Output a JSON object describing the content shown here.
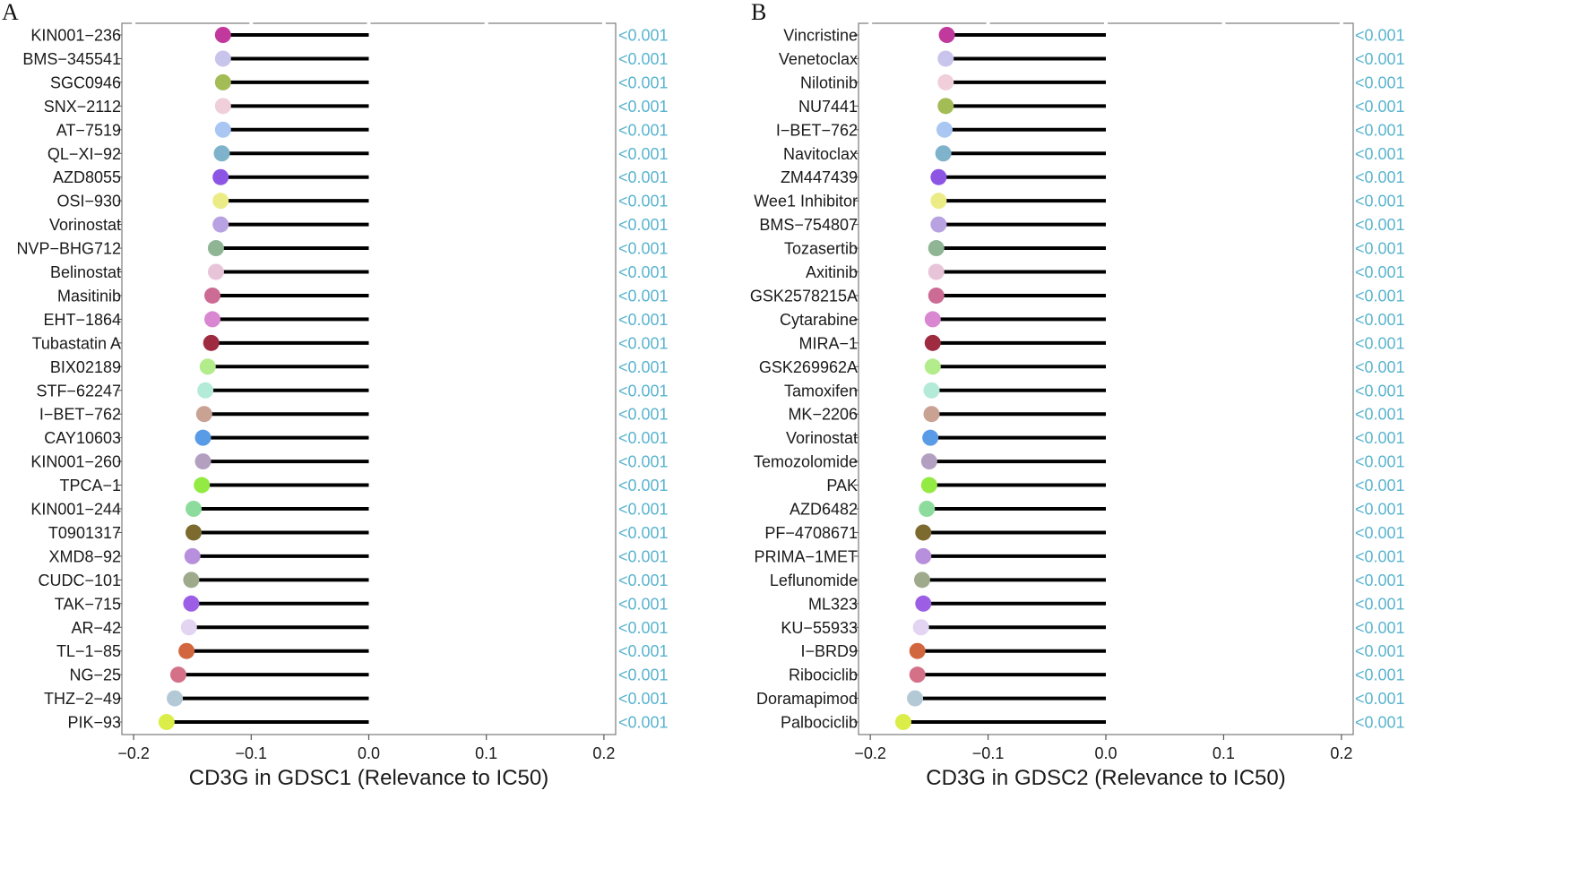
{
  "chart_data": [
    {
      "panel": "A",
      "type": "lollipop",
      "xlabel": "CD3G in GDSC1 (Relevance to IC50)",
      "xlim": [
        -0.21,
        0.21
      ],
      "xticks": [
        -0.2,
        -0.1,
        0.0,
        0.1,
        0.2
      ],
      "xtick_labels": [
        "−0.2",
        "−0.1",
        "0.0",
        "0.1",
        "0.2"
      ],
      "baseline": 0.0,
      "items": [
        {
          "drug": "KIN001−236",
          "value": -0.124,
          "pvalue": "<0.001",
          "color": "#c2399d"
        },
        {
          "drug": "BMS−345541",
          "value": -0.124,
          "pvalue": "<0.001",
          "color": "#c9c4ec"
        },
        {
          "drug": "SGC0946",
          "value": -0.124,
          "pvalue": "<0.001",
          "color": "#a3bc55"
        },
        {
          "drug": "SNX−2112",
          "value": -0.124,
          "pvalue": "<0.001",
          "color": "#f0cfdb"
        },
        {
          "drug": "AT−7519",
          "value": -0.124,
          "pvalue": "<0.001",
          "color": "#a9c7f2"
        },
        {
          "drug": "QL−XI−92",
          "value": -0.125,
          "pvalue": "<0.001",
          "color": "#7fb3cb"
        },
        {
          "drug": "AZD8055",
          "value": -0.126,
          "pvalue": "<0.001",
          "color": "#8d55e3"
        },
        {
          "drug": "OSI−930",
          "value": -0.126,
          "pvalue": "<0.001",
          "color": "#ecec87"
        },
        {
          "drug": "Vorinostat",
          "value": -0.126,
          "pvalue": "<0.001",
          "color": "#b8a2e1"
        },
        {
          "drug": "NVP−BHG712",
          "value": -0.13,
          "pvalue": "<0.001",
          "color": "#8fb595"
        },
        {
          "drug": "Belinostat",
          "value": -0.13,
          "pvalue": "<0.001",
          "color": "#e8c4d8"
        },
        {
          "drug": "Masitinib",
          "value": -0.133,
          "pvalue": "<0.001",
          "color": "#cc6b94"
        },
        {
          "drug": "EHT−1864",
          "value": -0.133,
          "pvalue": "<0.001",
          "color": "#d887d0"
        },
        {
          "drug": "Tubastatin A",
          "value": -0.134,
          "pvalue": "<0.001",
          "color": "#9e2b3f"
        },
        {
          "drug": "BIX02189",
          "value": -0.137,
          "pvalue": "<0.001",
          "color": "#b3ec8b"
        },
        {
          "drug": "STF−62247",
          "value": -0.139,
          "pvalue": "<0.001",
          "color": "#b3ebd8"
        },
        {
          "drug": "I−BET−762",
          "value": -0.14,
          "pvalue": "<0.001",
          "color": "#c9a294"
        },
        {
          "drug": "CAY10603",
          "value": -0.141,
          "pvalue": "<0.001",
          "color": "#5a9be8"
        },
        {
          "drug": "KIN001−260",
          "value": -0.141,
          "pvalue": "<0.001",
          "color": "#b3a0c1"
        },
        {
          "drug": "TPCA−1",
          "value": -0.142,
          "pvalue": "<0.001",
          "color": "#93ea42"
        },
        {
          "drug": "KIN001−244",
          "value": -0.149,
          "pvalue": "<0.001",
          "color": "#8ddc9d"
        },
        {
          "drug": "T0901317",
          "value": -0.149,
          "pvalue": "<0.001",
          "color": "#7d6a2f"
        },
        {
          "drug": "XMD8−92",
          "value": -0.15,
          "pvalue": "<0.001",
          "color": "#b88fdc"
        },
        {
          "drug": "CUDC−101",
          "value": -0.151,
          "pvalue": "<0.001",
          "color": "#9faa8d"
        },
        {
          "drug": "TAK−715",
          "value": -0.151,
          "pvalue": "<0.001",
          "color": "#9c5ee5"
        },
        {
          "drug": "AR−42",
          "value": -0.153,
          "pvalue": "<0.001",
          "color": "#e3d4f2"
        },
        {
          "drug": "TL−1−85",
          "value": -0.155,
          "pvalue": "<0.001",
          "color": "#d2663e"
        },
        {
          "drug": "NG−25",
          "value": -0.162,
          "pvalue": "<0.001",
          "color": "#d47188"
        },
        {
          "drug": "THZ−2−49",
          "value": -0.165,
          "pvalue": "<0.001",
          "color": "#b4c9d6"
        },
        {
          "drug": "PIK−93",
          "value": -0.172,
          "pvalue": "<0.001",
          "color": "#dbed48"
        }
      ]
    },
    {
      "panel": "B",
      "type": "lollipop",
      "xlabel": "CD3G in GDSC2 (Relevance to IC50)",
      "xlim": [
        -0.21,
        0.21
      ],
      "xticks": [
        -0.2,
        -0.1,
        0.0,
        0.1,
        0.2
      ],
      "xtick_labels": [
        "−0.2",
        "−0.1",
        "0.0",
        "0.1",
        "0.2"
      ],
      "baseline": 0.0,
      "items": [
        {
          "drug": "Vincristine",
          "value": -0.135,
          "pvalue": "<0.001",
          "color": "#c2399d"
        },
        {
          "drug": "Venetoclax",
          "value": -0.136,
          "pvalue": "<0.001",
          "color": "#c9c4ec"
        },
        {
          "drug": "Nilotinib",
          "value": -0.136,
          "pvalue": "<0.001",
          "color": "#f0cfdb"
        },
        {
          "drug": "NU7441",
          "value": -0.136,
          "pvalue": "<0.001",
          "color": "#a3bc55"
        },
        {
          "drug": "I−BET−762",
          "value": -0.137,
          "pvalue": "<0.001",
          "color": "#a9c7f2"
        },
        {
          "drug": "Navitoclax",
          "value": -0.138,
          "pvalue": "<0.001",
          "color": "#7fb3cb"
        },
        {
          "drug": "ZM447439",
          "value": -0.142,
          "pvalue": "<0.001",
          "color": "#8d55e3"
        },
        {
          "drug": "Wee1 Inhibitor",
          "value": -0.142,
          "pvalue": "<0.001",
          "color": "#ecec87"
        },
        {
          "drug": "BMS−754807",
          "value": -0.142,
          "pvalue": "<0.001",
          "color": "#b8a2e1"
        },
        {
          "drug": "Tozasertib",
          "value": -0.144,
          "pvalue": "<0.001",
          "color": "#8fb595"
        },
        {
          "drug": "Axitinib",
          "value": -0.144,
          "pvalue": "<0.001",
          "color": "#e8c4d8"
        },
        {
          "drug": "GSK2578215A",
          "value": -0.144,
          "pvalue": "<0.001",
          "color": "#cc6b94"
        },
        {
          "drug": "Cytarabine",
          "value": -0.147,
          "pvalue": "<0.001",
          "color": "#d887d0"
        },
        {
          "drug": "MIRA−1",
          "value": -0.147,
          "pvalue": "<0.001",
          "color": "#9e2b3f"
        },
        {
          "drug": "GSK269962A",
          "value": -0.147,
          "pvalue": "<0.001",
          "color": "#b3ec8b"
        },
        {
          "drug": "Tamoxifen",
          "value": -0.148,
          "pvalue": "<0.001",
          "color": "#b3ebd8"
        },
        {
          "drug": "MK−2206",
          "value": -0.148,
          "pvalue": "<0.001",
          "color": "#c9a294"
        },
        {
          "drug": "Vorinostat",
          "value": -0.149,
          "pvalue": "<0.001",
          "color": "#5a9be8"
        },
        {
          "drug": "Temozolomide",
          "value": -0.15,
          "pvalue": "<0.001",
          "color": "#b3a0c1"
        },
        {
          "drug": "PAK",
          "value": -0.15,
          "pvalue": "<0.001",
          "color": "#93ea42"
        },
        {
          "drug": "AZD6482",
          "value": -0.152,
          "pvalue": "<0.001",
          "color": "#8ddc9d"
        },
        {
          "drug": "PF−4708671",
          "value": -0.155,
          "pvalue": "<0.001",
          "color": "#7d6a2f"
        },
        {
          "drug": "PRIMA−1MET",
          "value": -0.155,
          "pvalue": "<0.001",
          "color": "#b88fdc"
        },
        {
          "drug": "Leflunomide",
          "value": -0.156,
          "pvalue": "<0.001",
          "color": "#9faa8d"
        },
        {
          "drug": "ML323",
          "value": -0.155,
          "pvalue": "<0.001",
          "color": "#9c5ee5"
        },
        {
          "drug": "KU−55933",
          "value": -0.157,
          "pvalue": "<0.001",
          "color": "#e3d4f2"
        },
        {
          "drug": "I−BRD9",
          "value": -0.16,
          "pvalue": "<0.001",
          "color": "#d2663e"
        },
        {
          "drug": "Ribociclib",
          "value": -0.16,
          "pvalue": "<0.001",
          "color": "#d47188"
        },
        {
          "drug": "Doramapimod",
          "value": -0.162,
          "pvalue": "<0.001",
          "color": "#b4c9d6"
        },
        {
          "drug": "Palbociclib",
          "value": -0.172,
          "pvalue": "<0.001",
          "color": "#dbed48"
        }
      ]
    }
  ]
}
